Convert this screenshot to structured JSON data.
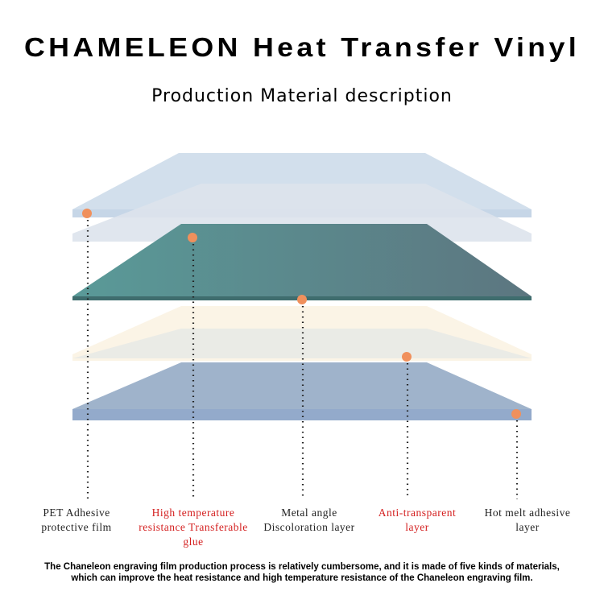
{
  "header": {
    "title": "CHAMELEON Heat Transfer Vinyl",
    "subtitle": "Production Material description"
  },
  "layers": [
    {
      "label_lines": [
        "PET Adhesive",
        "protective film"
      ]
    },
    {
      "label_lines": [
        "High temperature",
        "resistance Transferable",
        "glue"
      ]
    },
    {
      "label_lines": [
        "Metal angle",
        "Discoloration layer"
      ]
    },
    {
      "label_lines": [
        "Anti-transparent",
        "layer"
      ]
    },
    {
      "label_lines": [
        "Hot melt adhesive",
        "layer"
      ]
    }
  ],
  "footer": {
    "lines": [
      "The Chaneleon engraving film production process is relatively cumbersome, and it is made of five kinds of materials,",
      "which can improve the heat resistance and high temperature resistance of the  Chaneleon  engraving film."
    ]
  }
}
